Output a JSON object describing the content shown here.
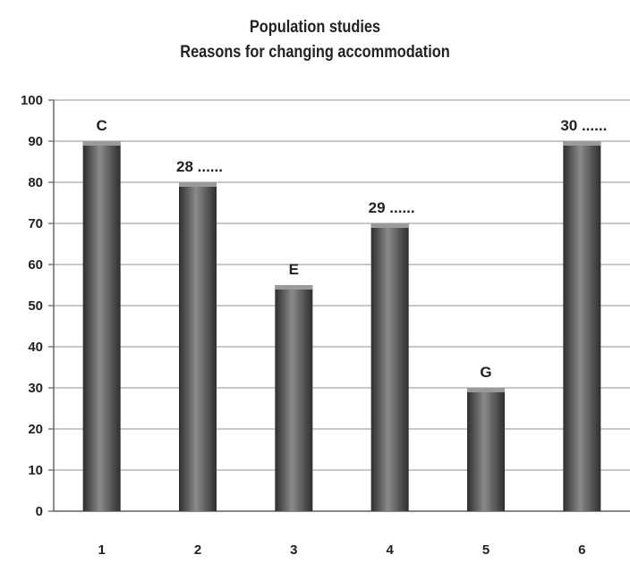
{
  "chart_data": {
    "type": "bar",
    "title": "Population studies",
    "subtitle": "Reasons for changing accommodation",
    "categories": [
      "1",
      "2",
      "3",
      "4",
      "5",
      "6"
    ],
    "values": [
      90,
      80,
      55,
      70,
      30,
      90
    ],
    "data_labels": [
      "C",
      "28 ......",
      "E",
      "29 ......",
      "G",
      "30 ......"
    ],
    "y_ticks": [
      0,
      10,
      20,
      30,
      40,
      50,
      60,
      70,
      80,
      90,
      100
    ],
    "ylim": [
      0,
      100
    ],
    "grid": true,
    "colors": {
      "bar": "#555555",
      "bar_light": "#8a8a8a",
      "bar_dark": "#2e2e2e",
      "grid": "#a8a8a8"
    }
  }
}
